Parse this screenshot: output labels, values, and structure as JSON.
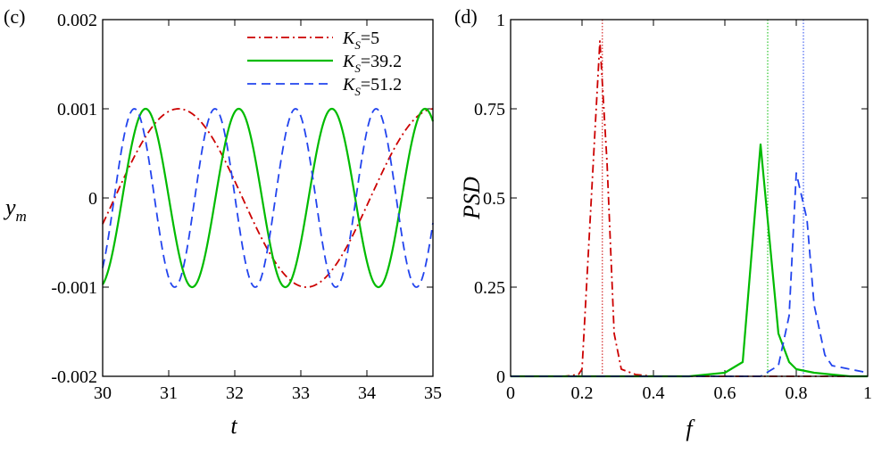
{
  "chart_data": [
    {
      "type": "line",
      "panel_label": "(c)",
      "xlabel": "t",
      "ylabel_main": "y",
      "ylabel_sub": "m",
      "xlim": [
        30,
        35
      ],
      "ylim": [
        -0.002,
        0.002
      ],
      "xticks": [
        30,
        31,
        32,
        33,
        34,
        35
      ],
      "xtick_labels": [
        "30",
        "31",
        "32",
        "33",
        "34",
        "35"
      ],
      "yticks": [
        -0.002,
        -0.001,
        0,
        0.001,
        0.002
      ],
      "ytick_labels": [
        "-0.002",
        "-0.001",
        "0",
        "0.001",
        "0.002"
      ],
      "legend_position": "top-right",
      "series": [
        {
          "name": "K_S=5",
          "legend_main": "K",
          "legend_sub": "S",
          "legend_value": "=5",
          "color": "#cc0000",
          "style": "dashdot",
          "amplitude": 0.001,
          "period": 3.87,
          "peak_t": 31.15
        },
        {
          "name": "K_S=39.2",
          "legend_main": "K",
          "legend_sub": "S",
          "legend_value": "=39.2",
          "color": "#00bb00",
          "style": "solid",
          "amplitude": 0.001,
          "period": 1.41,
          "peak_t": 30.65
        },
        {
          "name": "K_S=51.2",
          "legend_main": "K",
          "legend_sub": "S",
          "legend_value": "=51.2",
          "color": "#2244ee",
          "style": "dashed",
          "amplitude": 0.001,
          "period": 1.22,
          "peak_t": 30.48
        }
      ]
    },
    {
      "type": "line",
      "panel_label": "(d)",
      "xlabel": "f",
      "ylabel": "PSD",
      "xlim": [
        0,
        1
      ],
      "ylim": [
        0,
        1
      ],
      "xticks": [
        0,
        0.2,
        0.4,
        0.6,
        0.8,
        1
      ],
      "xtick_labels": [
        "0",
        "0.2",
        "0.4",
        "0.6",
        "0.8",
        "1"
      ],
      "yticks": [
        0,
        0.25,
        0.5,
        0.75,
        1
      ],
      "ytick_labels": [
        "0",
        "0.25",
        "0.5",
        "0.75",
        "1"
      ],
      "series": [
        {
          "name": "K_S=5",
          "color": "#cc0000",
          "style": "dashdot",
          "x": [
            0,
            0.15,
            0.19,
            0.2,
            0.25,
            0.27,
            0.29,
            0.31,
            0.35,
            0.4,
            1
          ],
          "y": [
            0,
            0,
            0.005,
            0.02,
            0.94,
            0.6,
            0.12,
            0.02,
            0.005,
            0,
            0
          ]
        },
        {
          "name": "K_S=39.2",
          "color": "#00bb00",
          "style": "solid",
          "x": [
            0,
            0.5,
            0.6,
            0.65,
            0.7,
            0.75,
            0.78,
            0.8,
            0.85,
            0.9,
            0.95,
            1
          ],
          "y": [
            0,
            0,
            0.01,
            0.04,
            0.65,
            0.12,
            0.04,
            0.02,
            0.01,
            0.005,
            0,
            0
          ]
        },
        {
          "name": "K_S=51.2",
          "color": "#2244ee",
          "style": "dashed",
          "x": [
            0,
            0.6,
            0.7,
            0.75,
            0.78,
            0.8,
            0.83,
            0.85,
            0.88,
            0.9,
            0.95,
            1
          ],
          "y": [
            0,
            0,
            0,
            0.03,
            0.17,
            0.57,
            0.44,
            0.2,
            0.06,
            0.03,
            0.02,
            0.01
          ]
        }
      ],
      "reference_lines": [
        {
          "x": 0.257,
          "color": "#cc0000"
        },
        {
          "x": 0.72,
          "color": "#00bb00"
        },
        {
          "x": 0.82,
          "color": "#2244ee"
        }
      ]
    }
  ]
}
